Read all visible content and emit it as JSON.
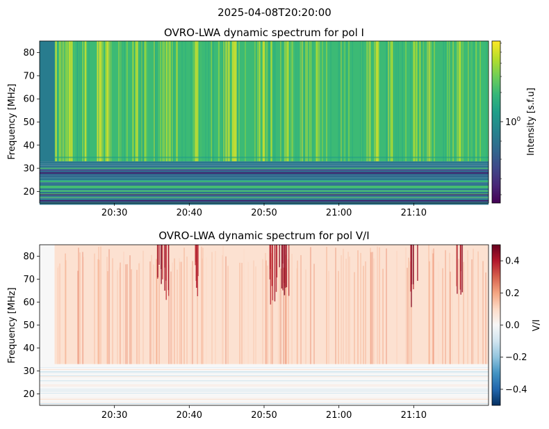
{
  "figure": {
    "suptitle": "2025-04-08T20:20:00"
  },
  "chart_data": [
    {
      "type": "heatmap",
      "title": "OVRO-LWA dynamic spectrum for pol I",
      "xlabel": "",
      "ylabel": "Frequency [MHz]",
      "x_range": [
        "20:20",
        "21:20"
      ],
      "xticks": [
        "20:30",
        "20:40",
        "20:50",
        "21:00",
        "21:10"
      ],
      "ylim": [
        15,
        85
      ],
      "yticks": [
        20,
        30,
        40,
        50,
        60,
        70,
        80
      ],
      "colormap": "viridis",
      "colorbar": {
        "label": "Intensity [s.f.u]",
        "scale": "log",
        "ticks": [
          "10^0"
        ],
        "tick_values": [
          1
        ]
      },
      "features": {
        "data_start_time": "20:22",
        "band_split_mhz": 33,
        "bright_bursts_times": [
          "20:22",
          "20:23",
          "20:24",
          "20:26",
          "20:28",
          "20:29",
          "20:33",
          "20:34",
          "20:36",
          "20:37",
          "20:41",
          "20:45",
          "20:46",
          "20:50",
          "20:51",
          "20:53",
          "20:55",
          "20:57",
          "21:04",
          "21:05",
          "21:07",
          "21:10",
          "21:12",
          "21:16"
        ]
      }
    },
    {
      "type": "heatmap",
      "title": "OVRO-LWA dynamic spectrum for pol V/I",
      "xlabel": "",
      "ylabel": "Frequency [MHz]",
      "x_range": [
        "20:20",
        "21:20"
      ],
      "xticks": [
        "20:30",
        "20:40",
        "20:50",
        "21:00",
        "21:10"
      ],
      "ylim": [
        15,
        85
      ],
      "yticks": [
        20,
        30,
        40,
        50,
        60,
        70,
        80
      ],
      "colormap": "RdBu_r",
      "colorbar": {
        "label": "V/I",
        "scale": "linear",
        "ticks": [
          "0.4",
          "0.2",
          "0.0",
          "−0.2",
          "−0.4"
        ],
        "tick_values": [
          0.4,
          0.2,
          0.0,
          -0.2,
          -0.4
        ],
        "range": [
          -0.5,
          0.5
        ]
      },
      "features": {
        "data_start_time": "20:22",
        "band_split_mhz": 33,
        "strong_positive_times": [
          "20:36",
          "20:37",
          "20:41",
          "20:51",
          "20:52",
          "20:53",
          "21:10",
          "21:16"
        ]
      }
    }
  ],
  "colors": {
    "viridis": [
      "#440154",
      "#482878",
      "#3e4989",
      "#31688e",
      "#26828e",
      "#1f9e89",
      "#35b779",
      "#6ece58",
      "#b5de2b",
      "#fde725"
    ],
    "rdbu_r": [
      "#053061",
      "#2166ac",
      "#4393c3",
      "#92c5de",
      "#d1e5f0",
      "#f7f7f7",
      "#fddbc7",
      "#f4a582",
      "#d6604d",
      "#b2182b",
      "#67001f"
    ]
  }
}
